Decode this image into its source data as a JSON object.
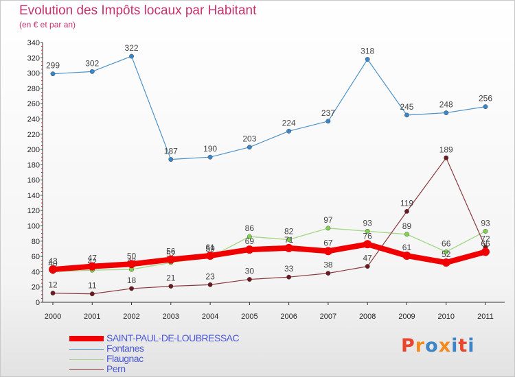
{
  "header": {
    "title": "Evolution des Impôts locaux par Habitant",
    "subtitle": "(en € et par an)"
  },
  "logo": {
    "text": "Proxiti",
    "colors": [
      "#e8452c",
      "#f28a1e",
      "#3d85c6",
      "#f28a1e",
      "#3d85c6",
      "#e8452c",
      "#3d85c6"
    ]
  },
  "chart_data": {
    "type": "line",
    "title": "Evolution des Impôts locaux par Habitant",
    "subtitle": "(en € et par an)",
    "x": [
      "2000",
      "2001",
      "2002",
      "2003",
      "2004",
      "2005",
      "2006",
      "2007",
      "2008",
      "2009",
      "2010",
      "2011"
    ],
    "ylim": [
      0,
      340
    ],
    "yticks": [
      0,
      20,
      40,
      60,
      80,
      100,
      120,
      140,
      160,
      180,
      200,
      220,
      240,
      260,
      280,
      300,
      320,
      340
    ],
    "grid": false,
    "legend_position": "bottom-left",
    "series": [
      {
        "name": "Fontanes",
        "color": "#4d92c8",
        "marker": "#3a86c6",
        "width": 1.2,
        "values": [
          299,
          302,
          322,
          187,
          190,
          203,
          224,
          237,
          318,
          245,
          248,
          256
        ],
        "labels": [
          "299",
          "302",
          "322",
          "187",
          "190",
          "203",
          "224",
          "237",
          "318",
          "245",
          "248",
          "256"
        ]
      },
      {
        "name": "Flaugnac",
        "color": "#a5d88b",
        "marker": "#7ed04d",
        "width": 1.4,
        "values": [
          40,
          42,
          43,
          52,
          59,
          86,
          82,
          97,
          93,
          89,
          66,
          93
        ],
        "labels": [
          "40",
          "42",
          "43",
          "52",
          "59",
          "86",
          "82",
          "97",
          "93",
          "89",
          "66",
          "93"
        ]
      },
      {
        "name": "Pern",
        "color": "#8a3a3e",
        "marker": "#6b1a22",
        "width": 1.2,
        "values": [
          12,
          11,
          18,
          21,
          23,
          30,
          33,
          38,
          47,
          119,
          189,
          72
        ],
        "labels": [
          "12",
          "11",
          "18",
          "21",
          "23",
          "30",
          "33",
          "38",
          "47",
          "119",
          "189",
          "72"
        ]
      },
      {
        "name": "SAINT-PAUL-DE-LOUBRESSAC",
        "color": "#f00000",
        "marker": "#f00000",
        "width": 8,
        "values": [
          43,
          47,
          50,
          56,
          61,
          69,
          71,
          67,
          76,
          61,
          52,
          66
        ],
        "labels": [
          "43",
          "47",
          "50",
          "56",
          "61",
          "69",
          "71",
          "67",
          "76",
          "61",
          "52",
          "66"
        ]
      }
    ],
    "legend": [
      {
        "name": "SAINT-PAUL-DE-LOUBRESSAC",
        "color": "#f00000",
        "thickness": 8
      },
      {
        "name": "Fontanes",
        "color": "#4d92c8",
        "thickness": 1
      },
      {
        "name": "Flaugnac",
        "color": "#a5d88b",
        "thickness": 1
      },
      {
        "name": "Pern",
        "color": "#8a3a3e",
        "thickness": 1
      }
    ]
  }
}
